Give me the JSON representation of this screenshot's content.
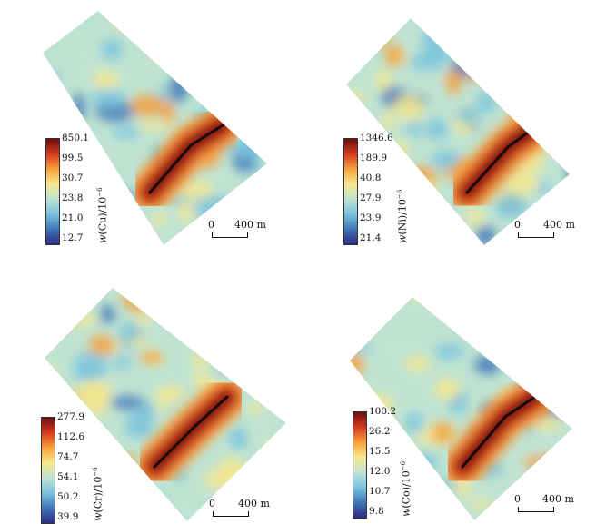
{
  "colors": {
    "colormap": [
      "#2b2c84",
      "#3f76b8",
      "#79c3de",
      "#bfe3d2",
      "#f6e88e",
      "#f7a13c",
      "#d6391f",
      "#6b0e0e"
    ],
    "ridge": "#1a0a0a"
  },
  "panels": [
    {
      "element": "Cu",
      "label_prefix": "w",
      "label_main": "(Cu)/10",
      "label_exp": "−6",
      "ticks": [
        "850.1",
        "99.5",
        "30.7",
        "23.8",
        "21.0",
        "12.7"
      ],
      "scale_zero": "0",
      "scale_dist": "400 m"
    },
    {
      "element": "Ni",
      "label_prefix": "w",
      "label_main": "(Ni)/10",
      "label_exp": "−6",
      "ticks": [
        "1346.6",
        "189.9",
        "40.8",
        "27.9",
        "23.9",
        "21.4"
      ],
      "scale_zero": "0",
      "scale_dist": "400 m"
    },
    {
      "element": "Cr",
      "label_prefix": "w",
      "label_main": "(Cr)/10",
      "label_exp": "−6",
      "ticks": [
        "277.9",
        "112.6",
        "74.7",
        "54.1",
        "50.2",
        "39.9"
      ],
      "scale_zero": "0",
      "scale_dist": "400 m"
    },
    {
      "element": "Co",
      "label_prefix": "w",
      "label_main": "(Co)/10",
      "label_exp": "−6",
      "ticks": [
        "100.2",
        "26.2",
        "15.5",
        "12.0",
        "10.7",
        "9.8"
      ],
      "scale_zero": "0",
      "scale_dist": "400 m"
    }
  ]
}
